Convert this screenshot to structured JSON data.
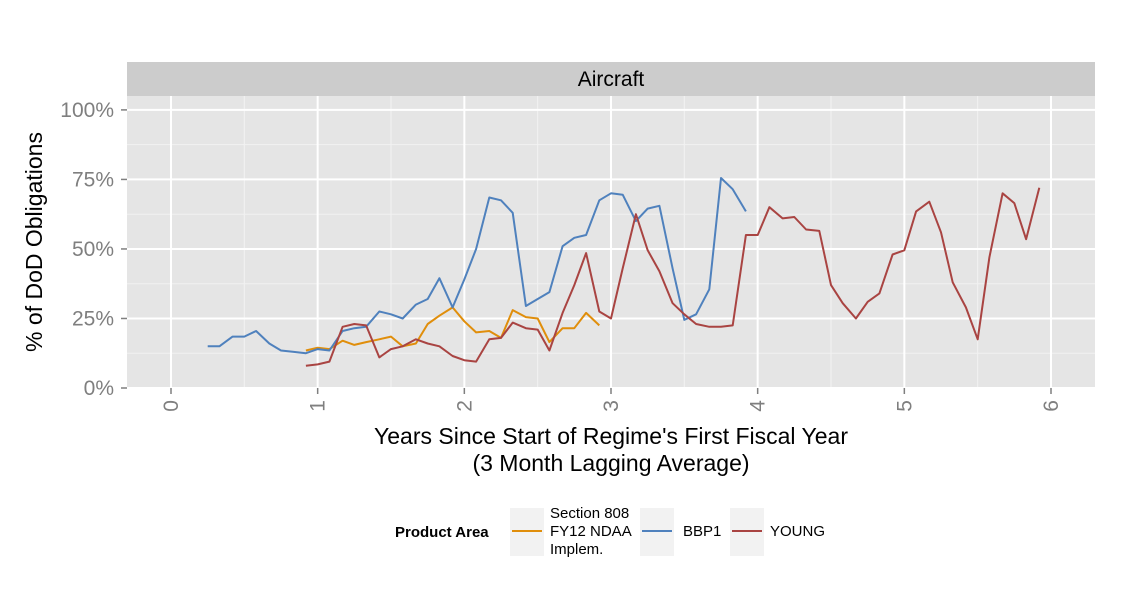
{
  "chart_data": {
    "type": "line",
    "facet_title": "Aircraft",
    "xlabel_line1": "Years Since Start of Regime's First Fiscal Year",
    "xlabel_line2": "(3 Month Lagging Average)",
    "ylabel": "% of DoD Obligations",
    "xlim": [
      -0.3,
      6.3
    ],
    "ylim": [
      0,
      1.05
    ],
    "x_ticks": [
      0,
      1,
      2,
      3,
      4,
      5,
      6
    ],
    "x_tick_labels": [
      "0",
      "1",
      "2",
      "3",
      "4",
      "5",
      "6"
    ],
    "y_ticks": [
      0,
      0.25,
      0.5,
      0.75,
      1.0
    ],
    "y_tick_labels": [
      "0%",
      "25%",
      "50%",
      "75%",
      "100%"
    ],
    "grid": true,
    "legend": {
      "title": "Product Area",
      "position": "bottom"
    },
    "series": [
      {
        "name": "Section 808 FY12 NDAA Implem.",
        "name_lines": [
          "Section 808",
          "FY12 NDAA",
          "Implem."
        ],
        "color": "#E08E0B",
        "x": [
          0.92,
          1.0,
          1.08,
          1.17,
          1.25,
          1.33,
          1.42,
          1.5,
          1.58,
          1.67,
          1.75,
          1.83,
          1.92,
          2.0,
          2.08,
          2.17,
          2.25,
          2.33,
          2.42,
          2.5,
          2.58,
          2.67,
          2.75,
          2.83,
          2.92
        ],
        "y": [
          0.135,
          0.145,
          0.14,
          0.17,
          0.155,
          0.165,
          0.175,
          0.185,
          0.15,
          0.16,
          0.23,
          0.26,
          0.29,
          0.24,
          0.2,
          0.205,
          0.18,
          0.28,
          0.255,
          0.25,
          0.165,
          0.215,
          0.215,
          0.27,
          0.225
        ]
      },
      {
        "name": "BBP1",
        "name_lines": [
          "BBP1"
        ],
        "color": "#4F81BD",
        "x": [
          0.25,
          0.33,
          0.42,
          0.5,
          0.58,
          0.67,
          0.75,
          0.83,
          0.92,
          1.0,
          1.08,
          1.17,
          1.25,
          1.33,
          1.42,
          1.5,
          1.58,
          1.67,
          1.75,
          1.83,
          1.92,
          2.0,
          2.08,
          2.17,
          2.25,
          2.33,
          2.42,
          2.5,
          2.58,
          2.67,
          2.75,
          2.83,
          2.92,
          3.0,
          3.08,
          3.17,
          3.25,
          3.33,
          3.42,
          3.5,
          3.58,
          3.67,
          3.75,
          3.83,
          3.92
        ],
        "y": [
          0.15,
          0.15,
          0.185,
          0.185,
          0.205,
          0.16,
          0.135,
          0.13,
          0.125,
          0.14,
          0.135,
          0.205,
          0.215,
          0.22,
          0.275,
          0.265,
          0.25,
          0.3,
          0.32,
          0.395,
          0.29,
          0.39,
          0.5,
          0.685,
          0.675,
          0.63,
          0.295,
          0.32,
          0.345,
          0.51,
          0.54,
          0.55,
          0.675,
          0.7,
          0.695,
          0.6,
          0.645,
          0.655,
          0.43,
          0.245,
          0.265,
          0.355,
          0.755,
          0.715,
          0.635
        ]
      },
      {
        "name": "YOUNG",
        "name_lines": [
          "YOUNG"
        ],
        "color": "#A94442",
        "x": [
          0.92,
          1.0,
          1.08,
          1.17,
          1.25,
          1.33,
          1.42,
          1.5,
          1.58,
          1.67,
          1.75,
          1.83,
          1.92,
          2.0,
          2.08,
          2.17,
          2.25,
          2.33,
          2.42,
          2.5,
          2.58,
          2.67,
          2.75,
          2.83,
          2.92,
          3.0,
          3.08,
          3.17,
          3.25,
          3.33,
          3.42,
          3.5,
          3.58,
          3.67,
          3.75,
          3.83,
          3.92,
          4.0,
          4.08,
          4.17,
          4.25,
          4.33,
          4.42,
          4.5,
          4.58,
          4.67,
          4.75,
          4.83,
          4.92,
          5.0,
          5.08,
          5.17,
          5.25,
          5.33,
          5.42,
          5.5,
          5.58,
          5.67,
          5.75,
          5.83,
          5.92
        ],
        "y": [
          0.08,
          0.085,
          0.095,
          0.22,
          0.23,
          0.225,
          0.11,
          0.14,
          0.15,
          0.175,
          0.16,
          0.15,
          0.115,
          0.1,
          0.095,
          0.175,
          0.18,
          0.235,
          0.215,
          0.21,
          0.135,
          0.27,
          0.37,
          0.485,
          0.275,
          0.25,
          0.43,
          0.625,
          0.495,
          0.42,
          0.305,
          0.265,
          0.23,
          0.22,
          0.22,
          0.225,
          0.55,
          0.55,
          0.65,
          0.61,
          0.615,
          0.57,
          0.565,
          0.37,
          0.305,
          0.25,
          0.31,
          0.34,
          0.48,
          0.495,
          0.635,
          0.67,
          0.56,
          0.38,
          0.29,
          0.175,
          0.47,
          0.7,
          0.665,
          0.535,
          0.72
        ]
      }
    ]
  }
}
